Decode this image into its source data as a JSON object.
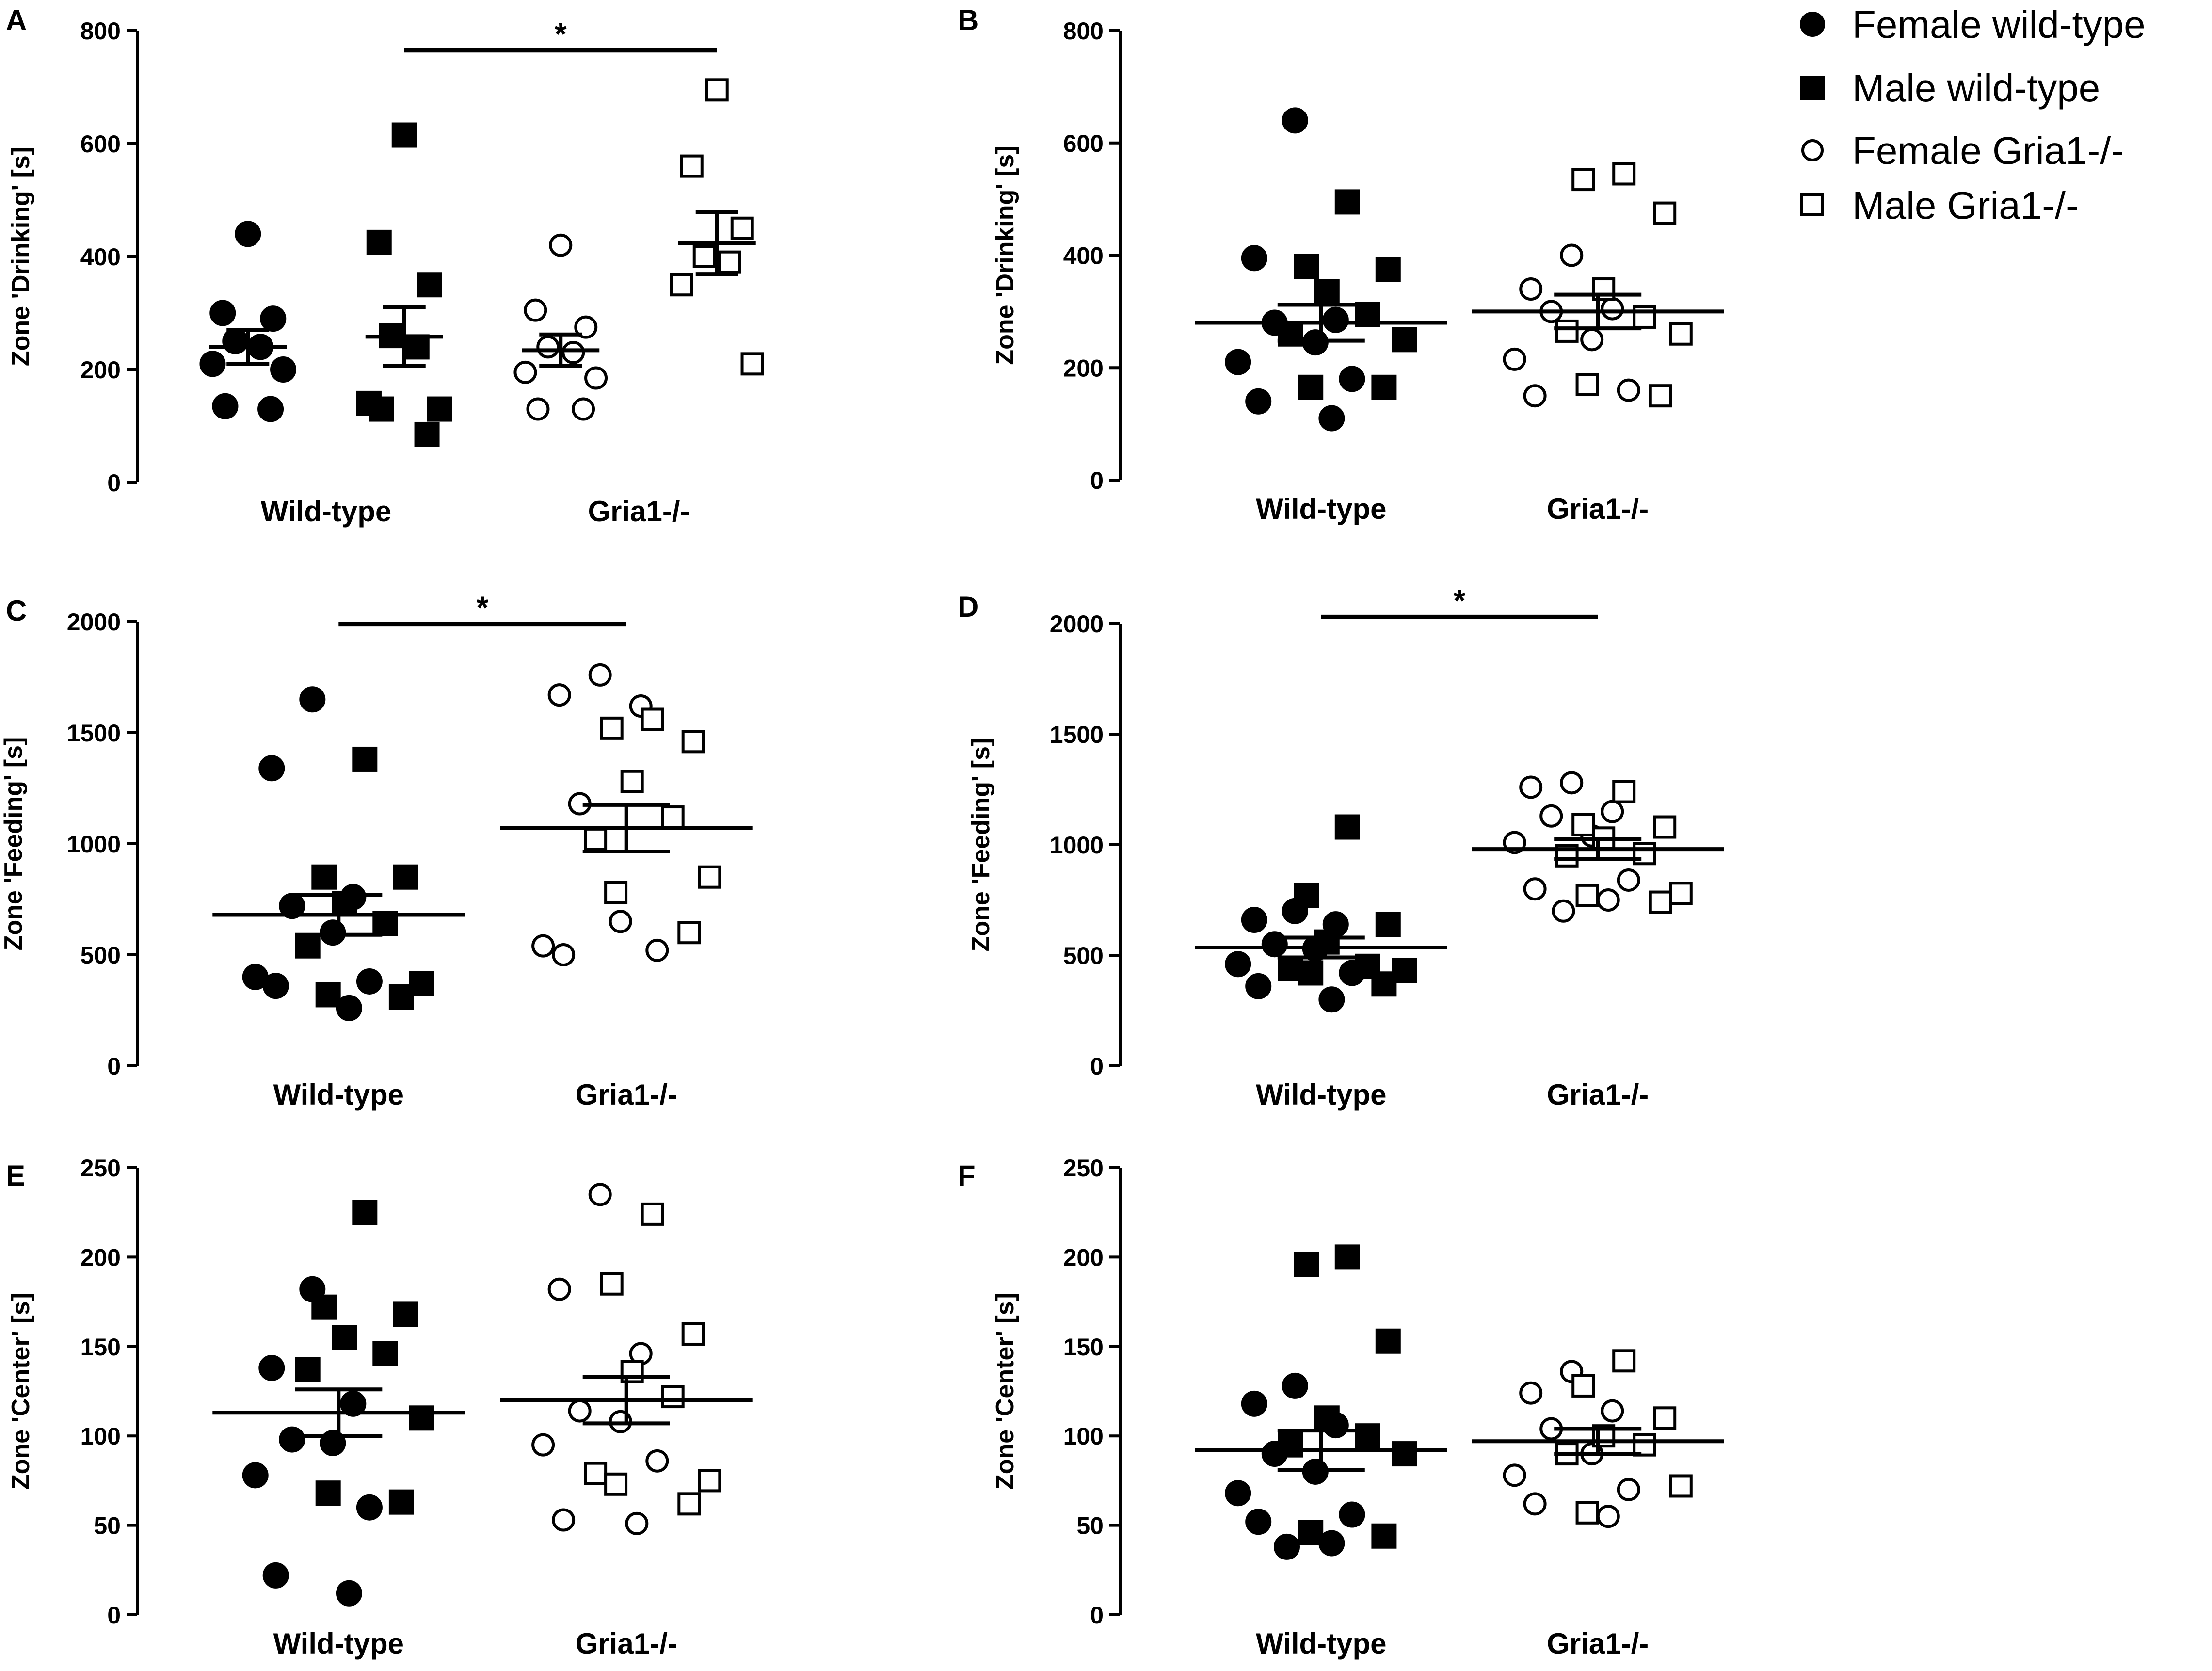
{
  "legend": [
    {
      "label": "Female wild-type",
      "marker": "circle",
      "filled": true
    },
    {
      "label": "Male wild-type",
      "marker": "square",
      "filled": true
    },
    {
      "label": "Female Gria1-/-",
      "marker": "circle",
      "filled": false
    },
    {
      "label": "Male Gria1-/-",
      "marker": "square",
      "filled": false
    }
  ],
  "colors": {
    "ink": "#000000",
    "background": "#ffffff"
  },
  "chart_data": [
    {
      "panel": "A",
      "type": "scatter",
      "ylabel": "Zone 'Drinking' [s]",
      "ylim": [
        0,
        800
      ],
      "yticks": [
        0,
        200,
        400,
        600,
        800
      ],
      "group_labels": [
        "Wild-type",
        "Gria1-/-"
      ],
      "groups": [
        {
          "name": "Female wild-type",
          "marker": "circle",
          "filled": true,
          "pos": 1,
          "values": [
            440,
            300,
            290,
            250,
            240,
            210,
            200,
            135,
            130
          ],
          "mean": 240,
          "sem": 30
        },
        {
          "name": "Male wild-type",
          "marker": "square",
          "filled": true,
          "pos": 2,
          "values": [
            615,
            425,
            350,
            260,
            240,
            140,
            130,
            130,
            85
          ],
          "mean": 258,
          "sem": 52
        },
        {
          "name": "Female Gria1-/-",
          "marker": "circle",
          "filled": false,
          "pos": 3,
          "values": [
            420,
            305,
            275,
            240,
            230,
            195,
            185,
            130,
            130
          ],
          "mean": 234,
          "sem": 28
        },
        {
          "name": "Male Gria1-/-",
          "marker": "square",
          "filled": false,
          "pos": 4,
          "values": [
            695,
            560,
            450,
            400,
            390,
            350,
            210
          ],
          "mean": 424,
          "sem": 55
        }
      ],
      "significance": [
        {
          "from": 2,
          "to": 4,
          "label": "*",
          "y": 765
        }
      ]
    },
    {
      "panel": "B",
      "type": "scatter",
      "ylabel": "Zone 'Drinking' [s]",
      "ylim": [
        0,
        800
      ],
      "yticks": [
        0,
        200,
        400,
        600,
        800
      ],
      "group_labels": [
        "Wild-type",
        "Gria1-/-"
      ],
      "groups": [
        {
          "name": "Female wild-type",
          "marker": "circle",
          "filled": true,
          "pos": 1,
          "values": [
            640,
            395,
            285,
            280,
            245,
            210,
            180,
            140,
            110
          ],
          "mean": 280,
          "sem": 32
        },
        {
          "name": "Male wild-type",
          "marker": "square",
          "filled": true,
          "pos": 1,
          "values": [
            495,
            380,
            375,
            335,
            295,
            260,
            250,
            165,
            165
          ],
          "mean": 280,
          "sem": 32
        },
        {
          "name": "Female Gria1-/-",
          "marker": "circle",
          "filled": false,
          "pos": 2,
          "values": [
            400,
            340,
            305,
            300,
            250,
            215,
            160,
            150
          ],
          "mean": 300,
          "sem": 30
        },
        {
          "name": "Male Gria1-/-",
          "marker": "square",
          "filled": false,
          "pos": 2,
          "values": [
            545,
            535,
            475,
            340,
            290,
            265,
            260,
            170,
            150
          ],
          "mean": 300,
          "sem": 30
        }
      ],
      "significance": []
    },
    {
      "panel": "C",
      "type": "scatter",
      "ylabel": "Zone 'Feeding' [s]",
      "ylim": [
        0,
        2000
      ],
      "yticks": [
        0,
        500,
        1000,
        1500,
        2000
      ],
      "group_labels": [
        "Wild-type",
        "Gria1-/-"
      ],
      "groups": [
        {
          "name": "Female wild-type",
          "marker": "circle",
          "filled": true,
          "pos": 1,
          "values": [
            1650,
            1340,
            760,
            720,
            600,
            400,
            380,
            360,
            260
          ],
          "mean": 680,
          "sem": 90
        },
        {
          "name": "Male wild-type",
          "marker": "square",
          "filled": true,
          "pos": 1,
          "values": [
            1380,
            850,
            850,
            730,
            640,
            540,
            370,
            320,
            310
          ],
          "mean": 680,
          "sem": 90
        },
        {
          "name": "Female Gria1-/-",
          "marker": "circle",
          "filled": false,
          "pos": 2,
          "values": [
            1760,
            1670,
            1620,
            1180,
            650,
            540,
            520,
            500
          ],
          "mean": 1070,
          "sem": 105
        },
        {
          "name": "Male Gria1-/-",
          "marker": "square",
          "filled": false,
          "pos": 2,
          "values": [
            1560,
            1520,
            1460,
            1280,
            1120,
            1020,
            850,
            780,
            600
          ],
          "mean": 1070,
          "sem": 105
        }
      ],
      "significance": [
        {
          "from": 1,
          "to": 2,
          "label": "*",
          "y": 1990
        }
      ]
    },
    {
      "panel": "D",
      "type": "scatter",
      "ylabel": "Zone 'Feeding' [s]",
      "ylim": [
        0,
        2000
      ],
      "yticks": [
        0,
        500,
        1000,
        1500,
        2000
      ],
      "group_labels": [
        "Wild-type",
        "Gria1-/-"
      ],
      "groups": [
        {
          "name": "Female wild-type",
          "marker": "circle",
          "filled": true,
          "pos": 1,
          "values": [
            700,
            660,
            640,
            550,
            530,
            460,
            420,
            360,
            300
          ],
          "mean": 535,
          "sem": 45
        },
        {
          "name": "Male wild-type",
          "marker": "square",
          "filled": true,
          "pos": 1,
          "values": [
            1080,
            770,
            640,
            560,
            450,
            440,
            430,
            420,
            370
          ],
          "mean": 535,
          "sem": 45
        },
        {
          "name": "Female Gria1-/-",
          "marker": "circle",
          "filled": false,
          "pos": 2,
          "values": [
            1280,
            1260,
            1150,
            1130,
            1040,
            1010,
            840,
            800,
            750,
            700
          ],
          "mean": 980,
          "sem": 45
        },
        {
          "name": "Male Gria1-/-",
          "marker": "square",
          "filled": false,
          "pos": 2,
          "values": [
            1240,
            1090,
            1080,
            1030,
            960,
            950,
            780,
            770,
            740
          ],
          "mean": 980,
          "sem": 45
        }
      ],
      "significance": [
        {
          "from": 1,
          "to": 2,
          "label": "*",
          "y": 2030
        }
      ]
    },
    {
      "panel": "E",
      "type": "scatter",
      "ylabel": "Zone 'Center' [s]",
      "ylim": [
        0,
        250
      ],
      "yticks": [
        0,
        50,
        100,
        150,
        200,
        250
      ],
      "group_labels": [
        "Wild-type",
        "Gria1-/-"
      ],
      "groups": [
        {
          "name": "Female wild-type",
          "marker": "circle",
          "filled": true,
          "pos": 1,
          "values": [
            182,
            138,
            118,
            98,
            96,
            78,
            60,
            22,
            12
          ],
          "mean": 113,
          "sem": 13
        },
        {
          "name": "Male wild-type",
          "marker": "square",
          "filled": true,
          "pos": 1,
          "values": [
            225,
            172,
            168,
            155,
            146,
            137,
            110,
            68,
            63
          ],
          "mean": 113,
          "sem": 13
        },
        {
          "name": "Female Gria1-/-",
          "marker": "circle",
          "filled": false,
          "pos": 2,
          "values": [
            235,
            182,
            146,
            114,
            108,
            95,
            86,
            53,
            51
          ],
          "mean": 120,
          "sem": 13
        },
        {
          "name": "Male Gria1-/-",
          "marker": "square",
          "filled": false,
          "pos": 2,
          "values": [
            224,
            185,
            157,
            136,
            122,
            79,
            75,
            73,
            62
          ],
          "mean": 120,
          "sem": 13
        }
      ],
      "significance": []
    },
    {
      "panel": "F",
      "type": "scatter",
      "ylabel": "Zone 'Center' [s]",
      "ylim": [
        0,
        250
      ],
      "yticks": [
        0,
        50,
        100,
        150,
        200,
        250
      ],
      "group_labels": [
        "Wild-type",
        "Gria1-/-"
      ],
      "groups": [
        {
          "name": "Female wild-type",
          "marker": "circle",
          "filled": true,
          "pos": 1,
          "values": [
            128,
            118,
            106,
            90,
            80,
            68,
            56,
            52,
            40,
            38
          ],
          "mean": 92,
          "sem": 11
        },
        {
          "name": "Male wild-type",
          "marker": "square",
          "filled": true,
          "pos": 1,
          "values": [
            200,
            196,
            153,
            110,
            100,
            95,
            90,
            46,
            44
          ],
          "mean": 92,
          "sem": 11
        },
        {
          "name": "Female Gria1-/-",
          "marker": "circle",
          "filled": false,
          "pos": 2,
          "values": [
            136,
            124,
            114,
            104,
            90,
            78,
            70,
            62,
            55
          ],
          "mean": 97,
          "sem": 7
        },
        {
          "name": "Male Gria1-/-",
          "marker": "square",
          "filled": false,
          "pos": 2,
          "values": [
            142,
            128,
            110,
            100,
            95,
            90,
            72,
            57
          ],
          "mean": 97,
          "sem": 7
        }
      ],
      "significance": []
    }
  ]
}
